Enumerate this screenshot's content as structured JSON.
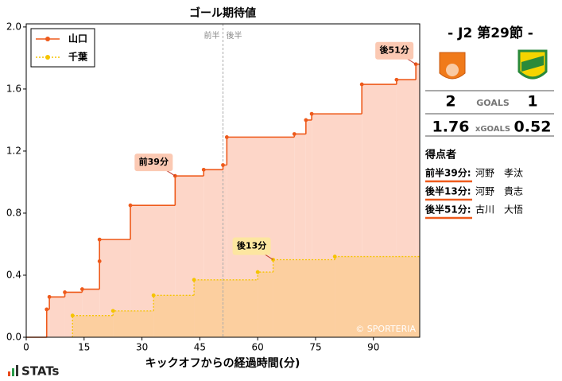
{
  "chart_data": {
    "type": "step",
    "title": "ゴール期待値",
    "x_label": "キックオフからの経過時間(分)",
    "xlim": [
      0,
      102
    ],
    "ylim": [
      0,
      2.02
    ],
    "xticks": [
      0,
      15,
      30,
      45,
      60,
      75,
      90
    ],
    "yticks": [
      {
        "value": 0,
        "label": "0.0"
      },
      0.4,
      0.8,
      1.2,
      1.6,
      {
        "value": 2,
        "label": "2.0"
      }
    ],
    "halftime": {
      "x": 51,
      "first_label": "前半",
      "second_label": "後半"
    },
    "legend_position": "upper left",
    "series": [
      {
        "name": "山口",
        "color": "#ee5a1b",
        "fill": "#fdd6c8",
        "dashed": false,
        "x": [
          5.3,
          6,
          10,
          14.5,
          19,
          19,
          27,
          38.6,
          46,
          51,
          52,
          69.5,
          72.5,
          74,
          87,
          96,
          101
        ],
        "values": [
          0.18,
          0.26,
          0.29,
          0.31,
          0.49,
          0.63,
          0.85,
          1.04,
          1.08,
          1.11,
          1.29,
          1.31,
          1.4,
          1.44,
          1.63,
          1.66,
          1.76
        ]
      },
      {
        "name": "千葉",
        "color": "#f5c400",
        "fill": "#fccf9f",
        "dashed": true,
        "x": [
          12,
          22.5,
          33,
          43.5,
          60,
          64,
          80
        ],
        "values": [
          0.14,
          0.17,
          0.27,
          0.37,
          0.42,
          0.5,
          0.52
        ]
      }
    ],
    "annotations": [
      {
        "text": "前39分",
        "x": 38.6,
        "y": 1.04,
        "color": "#fbc9b3"
      },
      {
        "text": "後13分",
        "x": 64,
        "y": 0.5,
        "color": "#fde6a0"
      },
      {
        "text": "後51分",
        "x": 101,
        "y": 1.76,
        "color": "#fbc9b3"
      }
    ],
    "watermark": "© SPORTERIA",
    "brand": "STATs"
  },
  "match": {
    "title": "- J2 第29節 -",
    "home_goals": 2,
    "goals_label": "GOALS",
    "away_goals": 1,
    "home_xg": 1.76,
    "xg_label": "xGOALS",
    "away_xg": 0.52,
    "scorers_title": "得点者",
    "scorers": [
      {
        "time": "前半39分:",
        "name": "河野　孝汰"
      },
      {
        "time": "後半13分:",
        "name": "河野　貴志"
      },
      {
        "time": "後半51分:",
        "name": "古川　大悟"
      }
    ]
  }
}
